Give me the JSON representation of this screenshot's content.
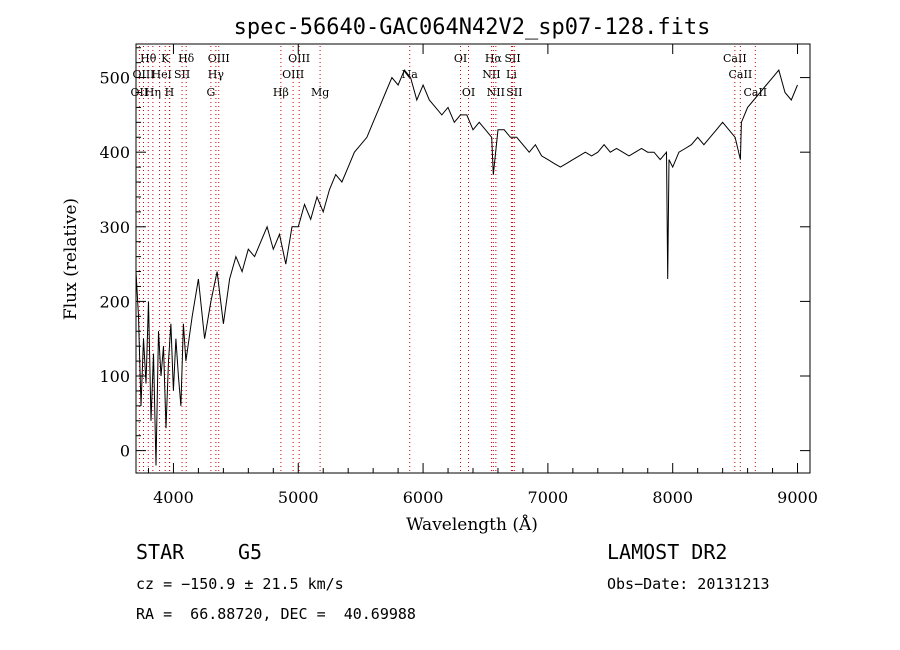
{
  "chart_data": {
    "type": "line",
    "title": "spec-56640-GAC064N42V2_sp07-128.fits",
    "xlabel": "Wavelength (Å)",
    "ylabel": "Flux (relative)",
    "xlim": [
      3700,
      9100
    ],
    "ylim": [
      -30,
      545
    ],
    "xticks": [
      4000,
      5000,
      6000,
      7000,
      8000,
      9000
    ],
    "yticks": [
      0,
      100,
      200,
      300,
      400,
      500
    ],
    "grid": false,
    "line_color": "#000000",
    "marker_color": "#cc0000",
    "series": [
      {
        "x": [
          3700,
          3720,
          3740,
          3760,
          3780,
          3800,
          3820,
          3840,
          3860,
          3880,
          3900,
          3920,
          3940,
          3960,
          3980,
          4000,
          4020,
          4040,
          4060,
          4080,
          4100,
          4150,
          4200,
          4250,
          4300,
          4350,
          4400,
          4450,
          4500,
          4550,
          4600,
          4650,
          4700,
          4750,
          4800,
          4850,
          4900,
          4950,
          5000,
          5050,
          5100,
          5150,
          5200,
          5250,
          5300,
          5350,
          5400,
          5450,
          5500,
          5550,
          5600,
          5650,
          5700,
          5750,
          5800,
          5850,
          5900,
          5950,
          6000,
          6050,
          6100,
          6150,
          6200,
          6250,
          6300,
          6350,
          6400,
          6450,
          6500,
          6550,
          6563,
          6600,
          6650,
          6700,
          6750,
          6800,
          6850,
          6900,
          6950,
          7000,
          7050,
          7100,
          7150,
          7200,
          7250,
          7300,
          7350,
          7400,
          7450,
          7500,
          7550,
          7600,
          7650,
          7700,
          7750,
          7800,
          7850,
          7900,
          7950,
          7960,
          7970,
          8000,
          8050,
          8100,
          8150,
          8200,
          8250,
          8300,
          8350,
          8400,
          8450,
          8500,
          8542,
          8550,
          8600,
          8650,
          8700,
          8750,
          8800,
          8850,
          8900,
          8950,
          9000
        ],
        "values": [
          240,
          180,
          60,
          150,
          90,
          200,
          40,
          130,
          -20,
          160,
          100,
          140,
          30,
          120,
          170,
          80,
          150,
          100,
          60,
          170,
          120,
          180,
          230,
          150,
          200,
          240,
          170,
          230,
          260,
          240,
          270,
          260,
          280,
          300,
          270,
          290,
          250,
          300,
          300,
          330,
          310,
          340,
          320,
          350,
          370,
          360,
          380,
          400,
          410,
          420,
          440,
          460,
          480,
          500,
          490,
          510,
          500,
          470,
          490,
          470,
          460,
          450,
          460,
          440,
          450,
          450,
          430,
          440,
          430,
          420,
          370,
          430,
          430,
          420,
          420,
          410,
          400,
          410,
          395,
          390,
          385,
          380,
          385,
          390,
          395,
          400,
          395,
          400,
          410,
          400,
          405,
          400,
          395,
          400,
          405,
          400,
          400,
          390,
          400,
          230,
          390,
          380,
          400,
          405,
          410,
          420,
          410,
          420,
          430,
          440,
          430,
          420,
          390,
          440,
          460,
          470,
          480,
          490,
          500,
          510,
          480,
          470,
          490
        ]
      }
    ],
    "line_markers": [
      {
        "label": "Hθ",
        "x": 3798,
        "row": 1
      },
      {
        "label": "K",
        "x": 3934,
        "row": 1
      },
      {
        "label": "Hδ",
        "x": 4102,
        "row": 1
      },
      {
        "label": "OIII",
        "x": 4363,
        "row": 1
      },
      {
        "label": "OIII",
        "x": 5007,
        "row": 1
      },
      {
        "label": "OI",
        "x": 6300,
        "row": 1
      },
      {
        "label": "Hα",
        "x": 6563,
        "row": 1
      },
      {
        "label": "SII",
        "x": 6717,
        "row": 1
      },
      {
        "label": "CaII",
        "x": 8498,
        "row": 1
      },
      {
        "label": "OIII",
        "x": 3760,
        "row": 2
      },
      {
        "label": "He",
        "x": 3889,
        "row": 2
      },
      {
        "label": "I",
        "x": 3970,
        "row": 2
      },
      {
        "label": "SII",
        "x": 4069,
        "row": 2
      },
      {
        "label": "Hγ",
        "x": 4340,
        "row": 2
      },
      {
        "label": "OIII",
        "x": 4959,
        "row": 2
      },
      {
        "label": "Na",
        "x": 5893,
        "row": 2
      },
      {
        "label": "NII",
        "x": 6548,
        "row": 2
      },
      {
        "label": "Li",
        "x": 6708,
        "row": 2
      },
      {
        "label": "CaII",
        "x": 8542,
        "row": 2
      },
      {
        "label": "OII",
        "x": 3727,
        "row": 3
      },
      {
        "label": "Hη",
        "x": 3835,
        "row": 3
      },
      {
        "label": "H",
        "x": 3968,
        "row": 3
      },
      {
        "label": "G",
        "x": 4300,
        "row": 3
      },
      {
        "label": "Hβ",
        "x": 4861,
        "row": 3
      },
      {
        "label": "Mg",
        "x": 5175,
        "row": 3
      },
      {
        "label": "OI",
        "x": 6364,
        "row": 3
      },
      {
        "label": "NII",
        "x": 6583,
        "row": 3
      },
      {
        "label": "SII",
        "x": 6731,
        "row": 3
      },
      {
        "label": "CaII",
        "x": 8662,
        "row": 3
      }
    ]
  },
  "info": {
    "object_class": "STAR",
    "subclass": "G5",
    "survey": "LAMOST DR2",
    "cz": "cz = −150.9 ± 21.5 km/s",
    "obs_date": "Obs−Date: 20131213",
    "coords": "RA =  66.88720, DEC =  40.69988"
  }
}
